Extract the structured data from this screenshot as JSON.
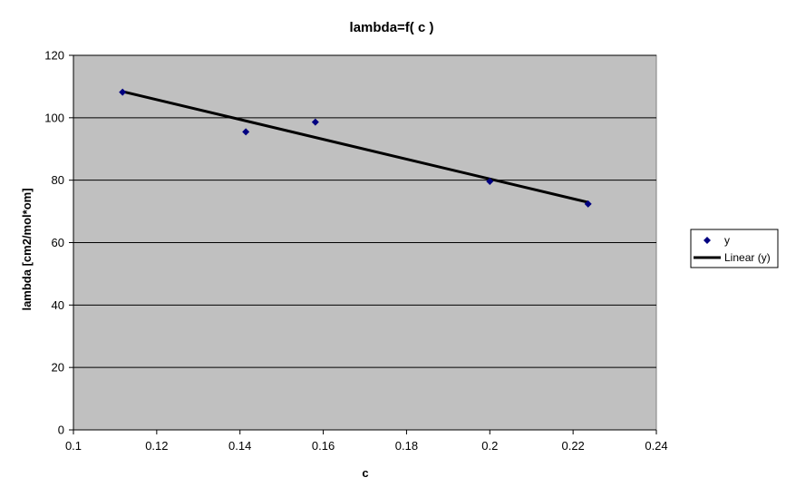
{
  "chart_data": {
    "type": "scatter",
    "title": "lambda=f( c )",
    "xlabel": "c",
    "ylabel": "lambda [cm2/mol*om]",
    "xlim": [
      0.1,
      0.24
    ],
    "ylim": [
      0,
      120
    ],
    "x_ticks": [
      "0.1",
      "0.12",
      "0.14",
      "0.16",
      "0.18",
      "0.2",
      "0.22",
      "0.24"
    ],
    "y_ticks": [
      "0",
      "20",
      "40",
      "60",
      "80",
      "100",
      "120"
    ],
    "grid": "horizontal",
    "plot_background": "#c0c0c0",
    "legend_position": "right",
    "series": [
      {
        "name": "y",
        "kind": "markers",
        "marker": "diamond",
        "color": "#000080",
        "points": [
          {
            "x": 0.1118,
            "y": 108.2
          },
          {
            "x": 0.1414,
            "y": 95.5
          },
          {
            "x": 0.1581,
            "y": 98.6
          },
          {
            "x": 0.2,
            "y": 79.6
          },
          {
            "x": 0.2236,
            "y": 72.4
          }
        ]
      },
      {
        "name": "Linear (y)",
        "kind": "trendline",
        "color": "#000000",
        "points": [
          {
            "x": 0.1118,
            "y": 108.4
          },
          {
            "x": 0.2236,
            "y": 72.9
          }
        ]
      }
    ]
  }
}
